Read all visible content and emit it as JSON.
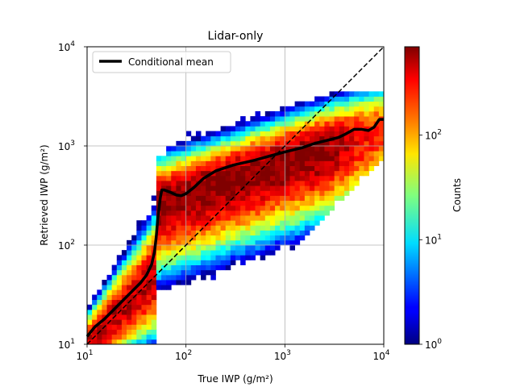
{
  "chart_data": {
    "type": "heatmap",
    "title": "Lidar-only",
    "xlabel": "True IWP (g/m²)",
    "ylabel": "Retrieved IWP (g/m²)",
    "xscale": "log",
    "yscale": "log",
    "xlim": [
      10,
      10000
    ],
    "ylim": [
      10,
      10000
    ],
    "x_ticks": [
      {
        "value": 10,
        "base": "10",
        "exp": "1"
      },
      {
        "value": 100,
        "base": "10",
        "exp": "2"
      },
      {
        "value": 1000,
        "base": "10",
        "exp": "3"
      },
      {
        "value": 10000,
        "base": "10",
        "exp": "4"
      }
    ],
    "y_ticks": [
      {
        "value": 10,
        "base": "10",
        "exp": "1"
      },
      {
        "value": 100,
        "base": "10",
        "exp": "2"
      },
      {
        "value": 1000,
        "base": "10",
        "exp": "3"
      },
      {
        "value": 10000,
        "base": "10",
        "exp": "4"
      }
    ],
    "grid": true,
    "colormap": "jet",
    "colorbar": {
      "label": "Counts",
      "scale": "log",
      "range": [
        1,
        700
      ],
      "ticks": [
        {
          "value": 1,
          "base": "10",
          "exp": "0"
        },
        {
          "value": 10,
          "base": "10",
          "exp": "1"
        },
        {
          "value": 100,
          "base": "10",
          "exp": "2"
        }
      ]
    },
    "legend": {
      "placement": "top-left",
      "entries": [
        "Conditional mean"
      ]
    },
    "series": [
      {
        "name": "Conditional mean",
        "color": "#000000",
        "x": [
          10,
          12,
          15,
          20,
          25,
          30,
          35,
          40,
          45,
          48,
          50,
          52,
          55,
          57,
          60,
          70,
          80,
          90,
          100,
          120,
          150,
          200,
          300,
          500,
          700,
          1000,
          1500,
          2000,
          2500,
          3000,
          3500,
          4000,
          5000,
          6000,
          7000,
          8000,
          9000,
          10000
        ],
        "y": [
          12,
          15,
          18,
          24,
          30,
          36,
          42,
          50,
          64,
          85,
          120,
          190,
          300,
          360,
          360,
          340,
          320,
          315,
          330,
          380,
          470,
          560,
          640,
          720,
          790,
          870,
          960,
          1060,
          1120,
          1170,
          1220,
          1300,
          1470,
          1470,
          1430,
          1550,
          1850,
          1850
        ]
      },
      {
        "name": "1:1 line",
        "color": "#000000",
        "style": "dashed",
        "x": [
          10,
          10000
        ],
        "y": [
          10,
          10000
        ]
      }
    ]
  },
  "colors": {
    "mean_line": "#000000",
    "grid": "#b0b0b0"
  }
}
